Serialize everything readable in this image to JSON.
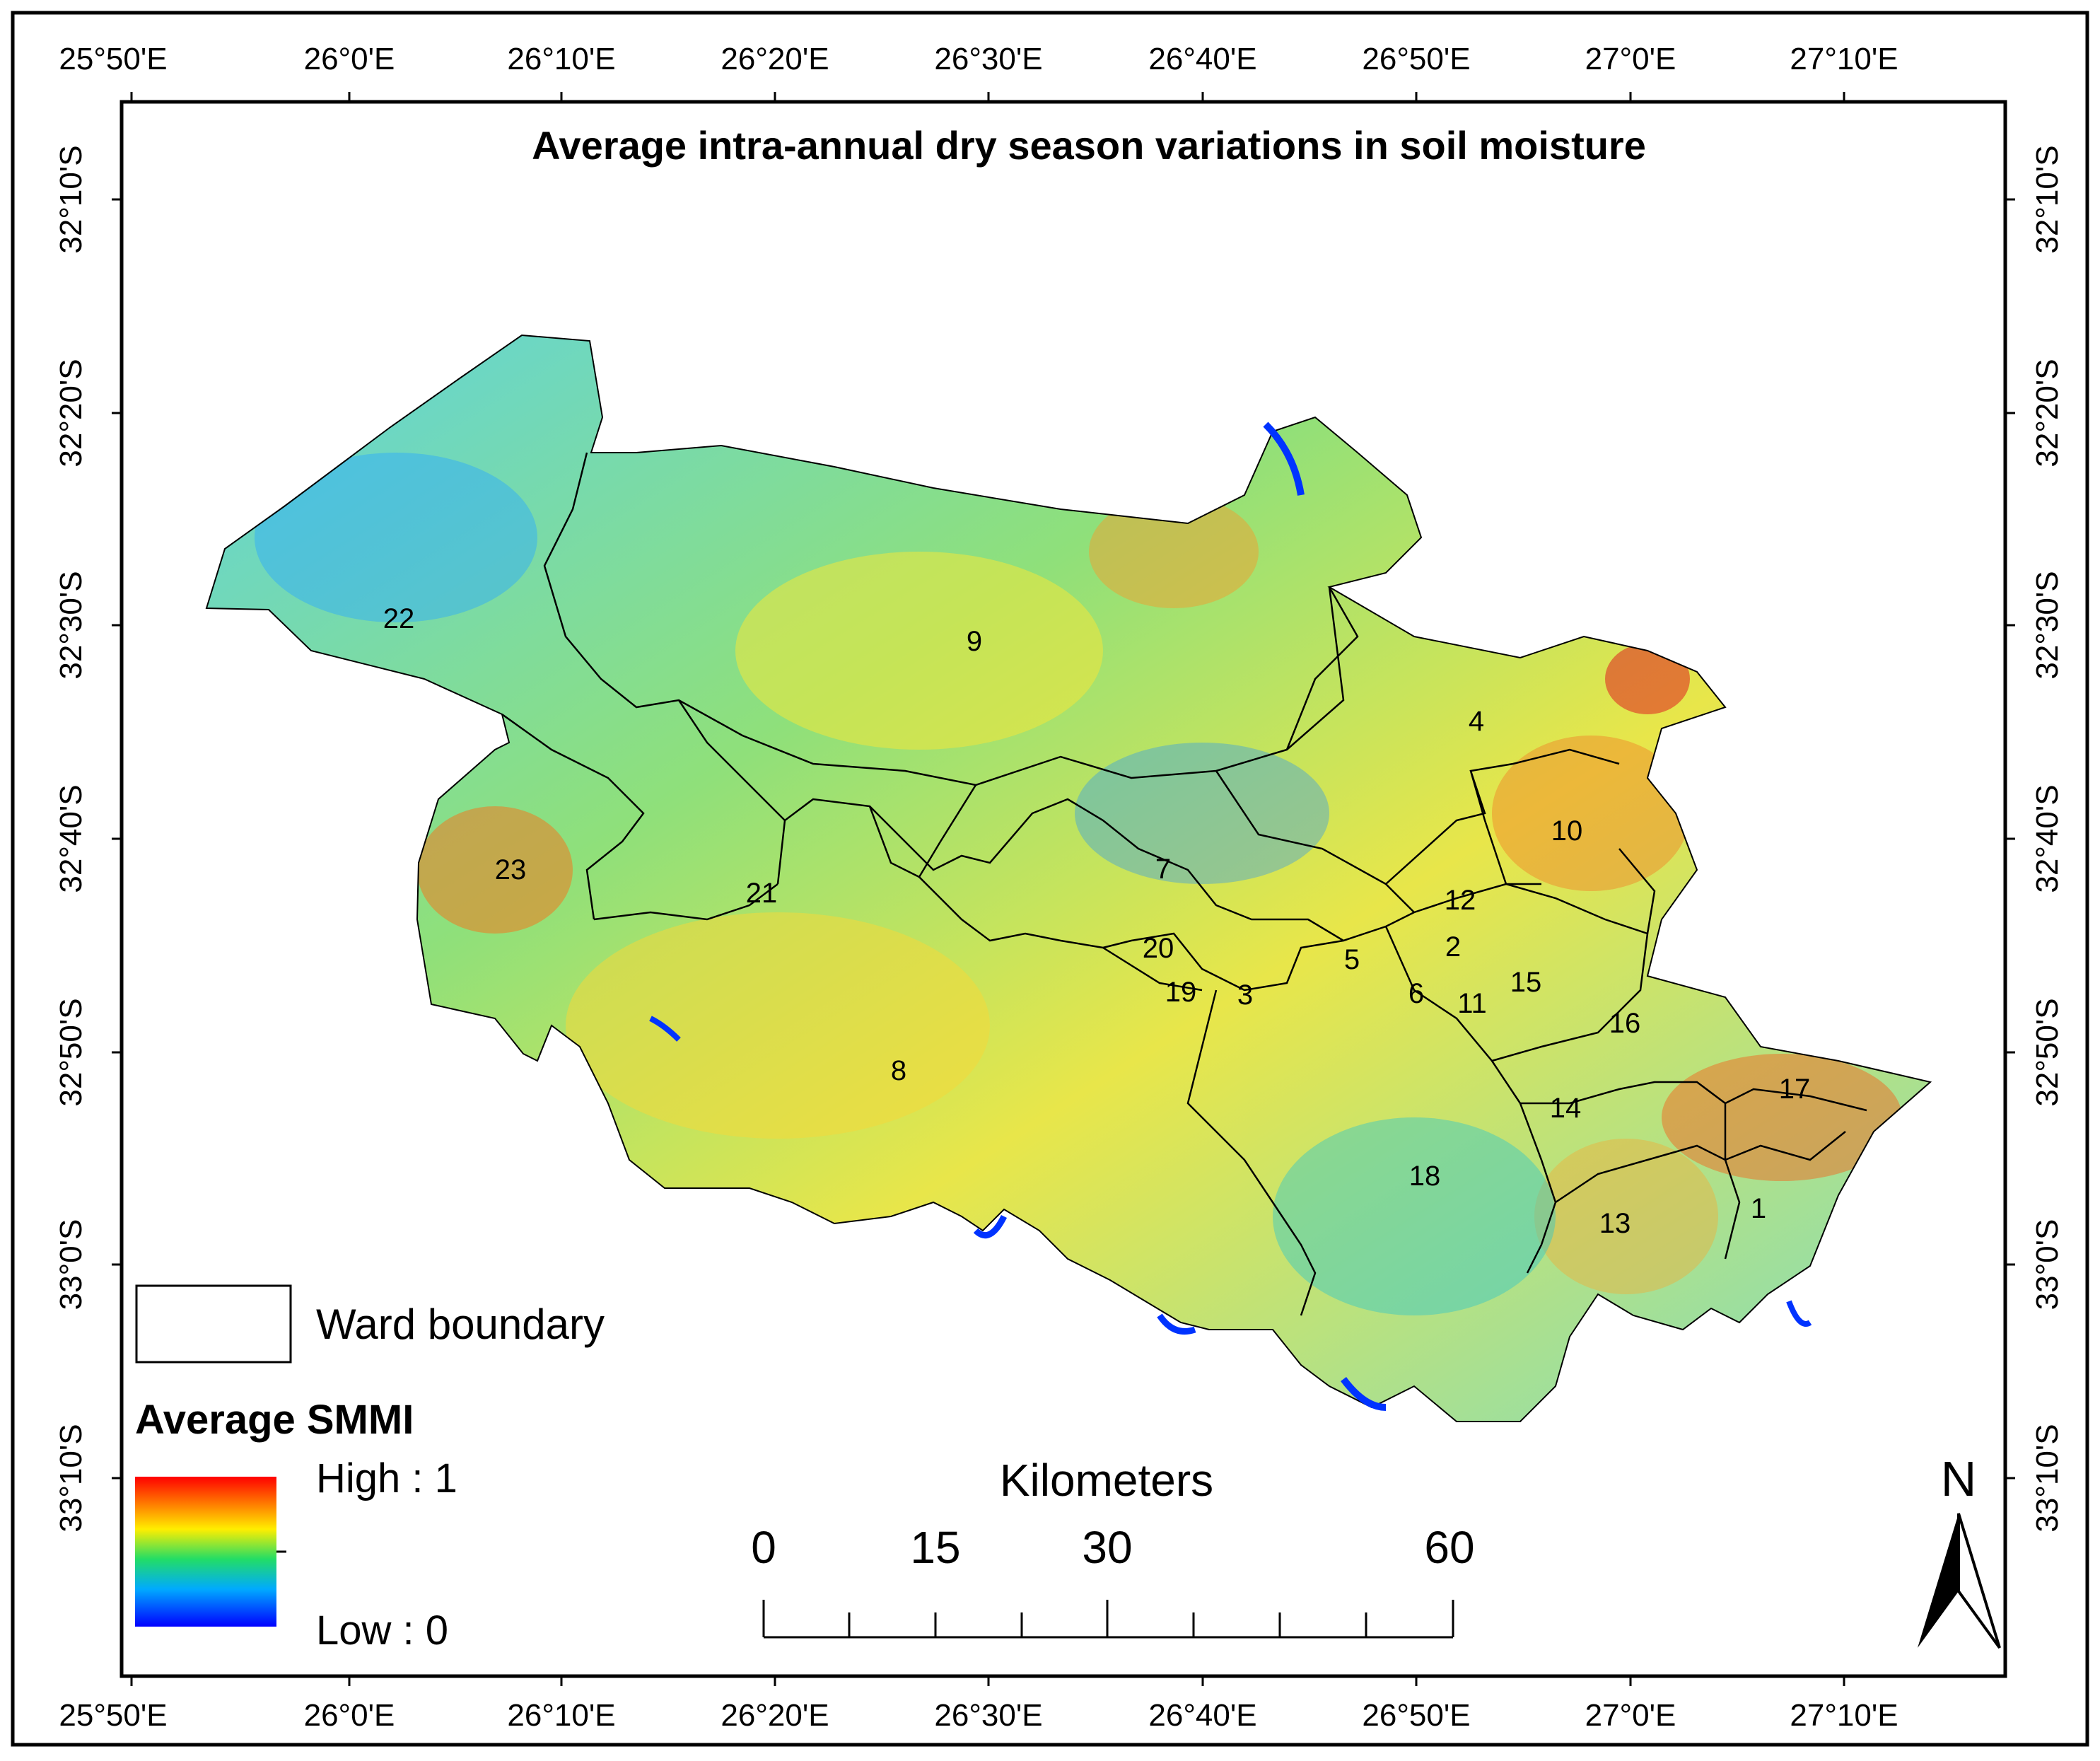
{
  "title": "Average intra-annual dry season variations in soil moisture",
  "longitude_labels": [
    "25°50'E",
    "26°0'E",
    "26°10'E",
    "26°20'E",
    "26°30'E",
    "26°40'E",
    "26°50'E",
    "27°0'E",
    "27°10'E"
  ],
  "latitude_labels": [
    "32°10'S",
    "32°20'S",
    "32°30'S",
    "32°40'S",
    "32°50'S",
    "33°0'S",
    "33°10'S"
  ],
  "wards": [
    {
      "id": "1",
      "label": "1"
    },
    {
      "id": "2",
      "label": "2"
    },
    {
      "id": "3",
      "label": "3"
    },
    {
      "id": "4",
      "label": "4"
    },
    {
      "id": "5",
      "label": "5"
    },
    {
      "id": "6",
      "label": "6"
    },
    {
      "id": "7",
      "label": "7"
    },
    {
      "id": "8",
      "label": "8"
    },
    {
      "id": "9",
      "label": "9"
    },
    {
      "id": "10",
      "label": "10"
    },
    {
      "id": "11",
      "label": "11"
    },
    {
      "id": "12",
      "label": "12"
    },
    {
      "id": "13",
      "label": "13"
    },
    {
      "id": "14",
      "label": "14"
    },
    {
      "id": "15",
      "label": "15"
    },
    {
      "id": "16",
      "label": "16"
    },
    {
      "id": "17",
      "label": "17"
    },
    {
      "id": "18",
      "label": "18"
    },
    {
      "id": "19",
      "label": "19"
    },
    {
      "id": "20",
      "label": "20"
    },
    {
      "id": "21",
      "label": "21"
    },
    {
      "id": "22",
      "label": "22"
    },
    {
      "id": "23",
      "label": "23"
    }
  ],
  "legend": {
    "boundary_label": "Ward boundary",
    "smmi_title": "Average SMMI",
    "high_label": "High : 1",
    "low_label": "Low : 0",
    "colors": [
      "#ff0000",
      "#ffee00",
      "#22dd66",
      "#00aaff",
      "#0000ff"
    ]
  },
  "scale_bar": {
    "unit": "Kilometers",
    "ticks": [
      "0",
      "15",
      "30",
      "60"
    ]
  },
  "north_arrow": {
    "label": "N"
  }
}
